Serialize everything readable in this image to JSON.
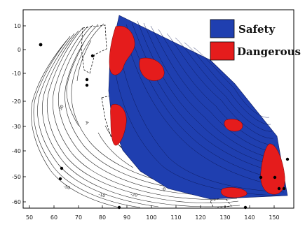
{
  "legend": {
    "items": [
      {
        "label": "Safety",
        "color": "#1f3fb0"
      },
      {
        "label": "Dangerous",
        "color": "#e51c1c"
      }
    ]
  },
  "axes": {
    "x_ticks": [
      "50",
      "60",
      "70",
      "80",
      "90",
      "100",
      "110",
      "120",
      "130",
      "140",
      "150"
    ],
    "y_ticks": [
      "10",
      "0",
      "-10",
      "-20",
      "-30",
      "-40",
      "-50",
      "-60"
    ]
  },
  "contour_labels": [
    "-30",
    "-50",
    "-10",
    "-20",
    "-8",
    "-4"
  ],
  "colors": {
    "safety": "#1f3fb0",
    "dangerous": "#e51c1c",
    "contour": "#222222",
    "frame": "#000000"
  }
}
